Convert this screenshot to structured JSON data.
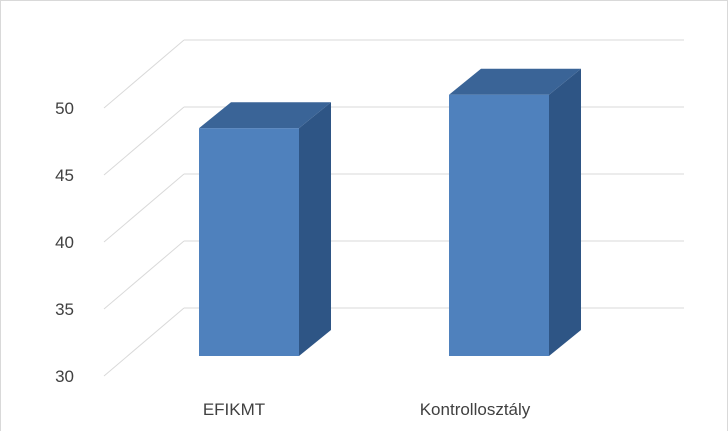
{
  "chart_data": {
    "type": "bar",
    "style": "3d-column",
    "categories": [
      "EFIKMT",
      "Kontrollosztály"
    ],
    "values": [
      47,
      49.5
    ],
    "ylim": [
      30,
      50
    ],
    "yticks": [
      30,
      35,
      40,
      45,
      50
    ],
    "ytick_labels": [
      "30",
      "35",
      "40",
      "45",
      "50"
    ],
    "grid": true,
    "legend": "none",
    "colors": {
      "front": "#4f81bd",
      "side": "#2e5585",
      "top": "#3a6497",
      "grid": "#d9d9d9",
      "text": "#404040"
    }
  }
}
